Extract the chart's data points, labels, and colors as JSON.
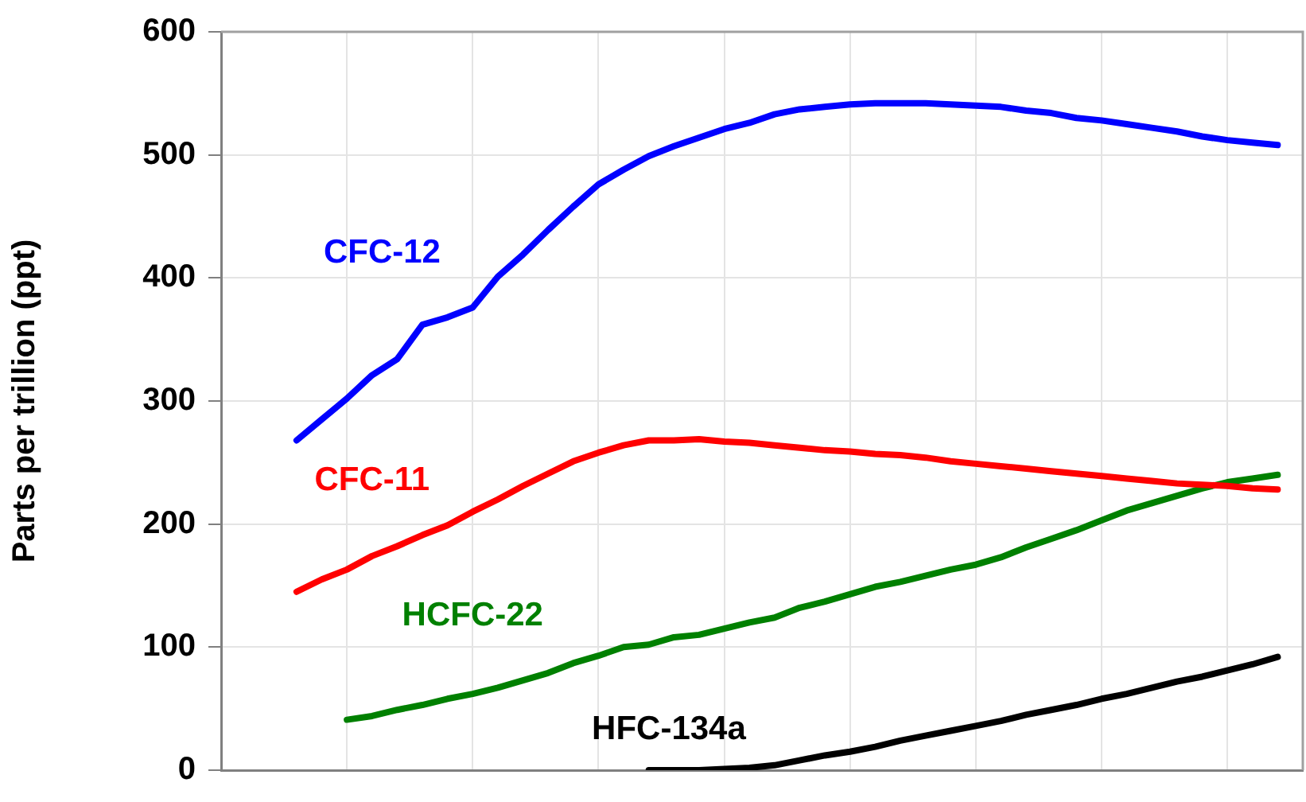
{
  "chart_data": {
    "type": "line",
    "ylabel": "Parts per trillion (ppt)",
    "categories": [
      null,
      null,
      null,
      null,
      null,
      null,
      null,
      null,
      null,
      null,
      null,
      null,
      null,
      null,
      null,
      null,
      null,
      null,
      null,
      null,
      null,
      null,
      null,
      null,
      null,
      null,
      null,
      null,
      null,
      null,
      null,
      null,
      null,
      null,
      null,
      null,
      null,
      null,
      null,
      null,
      null,
      null,
      null,
      null
    ],
    "series": [
      {
        "name": "CFC-12",
        "color": "#0000ff",
        "values": [
          null,
          null,
          null,
          268,
          285,
          302,
          321,
          334,
          362,
          368,
          376,
          401,
          419,
          439,
          458,
          476,
          488,
          499,
          507,
          514,
          521,
          526,
          533,
          537,
          539,
          541,
          542,
          542,
          542,
          541,
          540,
          539,
          536,
          534,
          530,
          528,
          525,
          522,
          519,
          515,
          512,
          510,
          508,
          null
        ]
      },
      {
        "name": "CFC-11",
        "color": "#ff0000",
        "values": [
          null,
          null,
          null,
          145,
          155,
          163,
          174,
          182,
          191,
          199,
          210,
          220,
          231,
          241,
          251,
          258,
          264,
          268,
          268,
          269,
          267,
          266,
          264,
          262,
          260,
          259,
          257,
          256,
          254,
          251,
          249,
          247,
          245,
          243,
          241,
          239,
          237,
          235,
          233,
          232,
          231,
          229,
          228,
          null
        ]
      },
      {
        "name": "HCFC-22",
        "color": "#008000",
        "values": [
          null,
          null,
          null,
          null,
          null,
          41,
          44,
          49,
          53,
          58,
          62,
          67,
          73,
          79,
          87,
          93,
          100,
          102,
          108,
          110,
          115,
          120,
          124,
          132,
          137,
          143,
          149,
          153,
          158,
          163,
          167,
          173,
          181,
          188,
          195,
          203,
          211,
          217,
          223,
          229,
          234,
          237,
          240,
          null
        ]
      },
      {
        "name": "HFC-134a",
        "color": "#000000",
        "values": [
          null,
          null,
          null,
          null,
          null,
          null,
          null,
          null,
          null,
          null,
          null,
          null,
          null,
          null,
          null,
          null,
          null,
          0,
          0,
          0,
          1,
          2,
          4,
          8,
          12,
          15,
          19,
          24,
          28,
          32,
          36,
          40,
          45,
          49,
          53,
          58,
          62,
          67,
          72,
          76,
          81,
          86,
          92,
          null
        ]
      }
    ],
    "ylim": [
      0,
      600
    ],
    "yticks": [
      0,
      100,
      200,
      300,
      400,
      500,
      600
    ],
    "grid": true,
    "legend": false,
    "tick_labels": "y",
    "marker": "none",
    "line_style": "solid"
  }
}
